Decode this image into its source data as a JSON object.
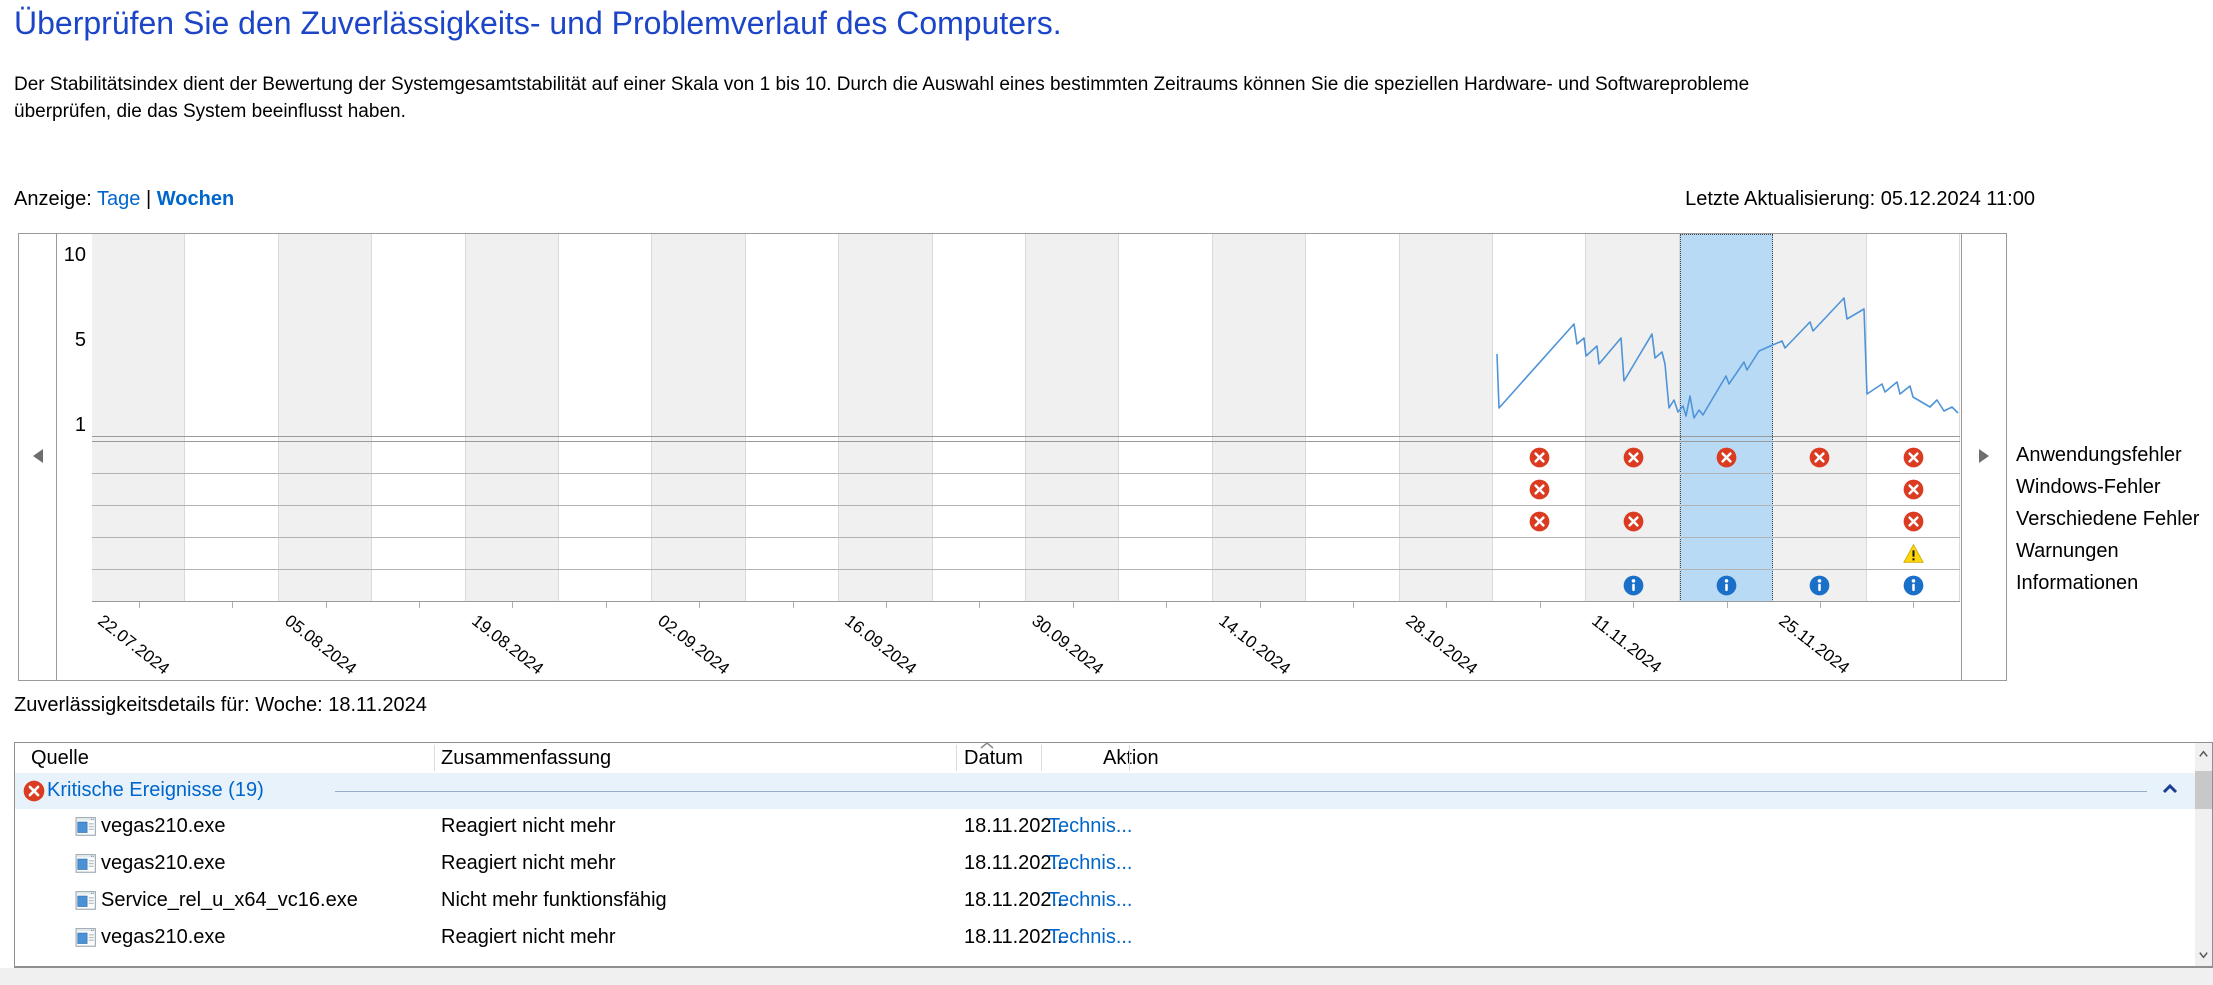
{
  "header": {
    "title": "Überprüfen Sie den Zuverlässigkeits- und Problemverlauf des Computers.",
    "description_line1": "Der Stabilitätsindex dient der Bewertung der Systemgesamtstabilität auf einer Skala von 1 bis 10. Durch die Auswahl eines bestimmten Zeitraums können Sie die speziellen Hardware- und Softwareprobleme",
    "description_line2": "überprüfen, die das System beeinflusst haben.",
    "display_label": "Anzeige:",
    "view_days": "Tage",
    "view_separator": "|",
    "view_weeks": "Wochen",
    "last_update": "Letzte Aktualisierung: 05.12.2024 11:00"
  },
  "chart": {
    "y_ticks": [
      "10",
      "5",
      "1"
    ],
    "weeks": 20,
    "selected_week_index": 17,
    "selected_week_label": "18.11.2024",
    "x_labels": [
      "22.07.2024",
      "05.08.2024",
      "19.08.2024",
      "02.09.2024",
      "16.09.2024",
      "30.09.2024",
      "14.10.2024",
      "28.10.2024",
      "11.11.2024",
      "25.11.2024"
    ],
    "legend": [
      {
        "label": "Anwendungsfehler",
        "icon": "error"
      },
      {
        "label": "Windows-Fehler",
        "icon": "error"
      },
      {
        "label": "Verschiedene Fehler",
        "icon": "error"
      },
      {
        "label": "Warnungen",
        "icon": "warning"
      },
      {
        "label": "Informationen",
        "icon": "info"
      }
    ],
    "events": [
      [
        15,
        16,
        17,
        18,
        19
      ],
      [
        15,
        19
      ],
      [
        15,
        16,
        19
      ],
      [
        19
      ],
      [
        16,
        17,
        18,
        19
      ]
    ],
    "stability_line_points": "1405,120 1407,174 1482,90 1485,110 1492,104 1494,122 1505,112 1507,130 1529,104 1532,147 1560,100 1563,124 1570,118 1573,130 1577,174 1582,166 1586,178 1591,172 1594,182 1598,162 1602,184 1607,176 1611,181 1615,174 1634,142 1637,150 1652,128 1655,136 1667,117 1690,107 1693,114 1718,88 1721,97 1752,64 1755,85 1772,75 1775,160 1790,150 1793,158 1805,148 1808,160 1818,152 1821,163 1838,173 1845,166 1852,177 1860,173 1866,179",
    "colors": {
      "line": "#4f94d8",
      "selection": "#b9daf5",
      "column_gray": "#f0f0f0",
      "error": "#da3b21",
      "info": "#1a70c9",
      "warning": "#ffd60a",
      "title_blue": "#1c45c8",
      "link_blue": "#0066cc"
    }
  },
  "details": {
    "label": "Zuverlässigkeitsdetails für: Woche: 18.11.2024",
    "columns": [
      "Quelle",
      "Zusammenfassung",
      "Datum",
      "Aktion"
    ],
    "group_label": "Kritische Ereignisse (19)",
    "rows": [
      {
        "source": "vegas210.exe",
        "summary": "Reagiert nicht mehr",
        "date": "18.11.202...",
        "action": "Technis..."
      },
      {
        "source": "vegas210.exe",
        "summary": "Reagiert nicht mehr",
        "date": "18.11.202...",
        "action": "Technis..."
      },
      {
        "source": "Service_rel_u_x64_vc16.exe",
        "summary": "Nicht mehr funktionsfähig",
        "date": "18.11.202...",
        "action": "Technis..."
      },
      {
        "source": "vegas210.exe",
        "summary": "Reagiert nicht mehr",
        "date": "18.11.202...",
        "action": "Technis..."
      }
    ]
  }
}
